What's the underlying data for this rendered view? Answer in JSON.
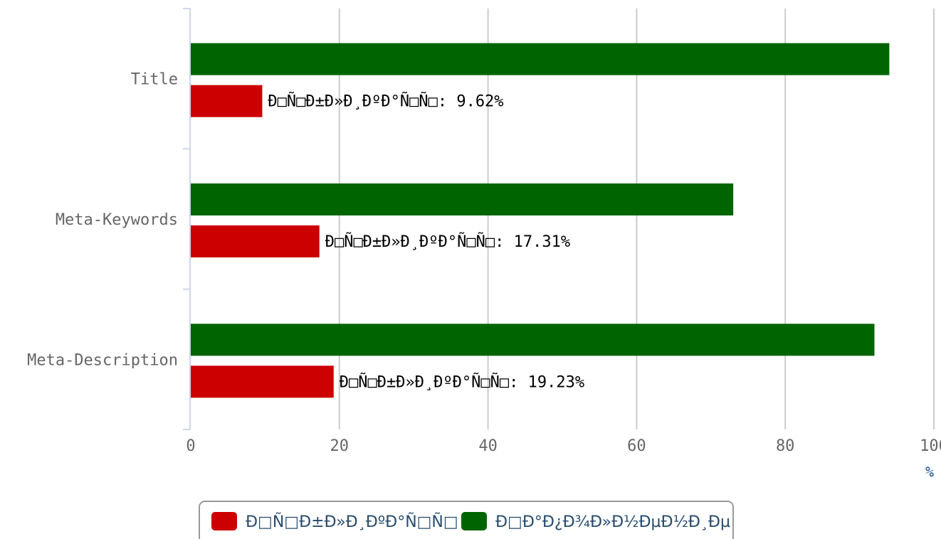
{
  "chart_data": {
    "type": "bar",
    "orientation": "horizontal",
    "categories": [
      "Title",
      "Meta-Keywords",
      "Meta-Description"
    ],
    "series": [
      {
        "name": "Ð□Ñ□Ð±Ð»Ð¸ÐºÐ°Ñ□Ñ□",
        "color": "#cc0000",
        "values": [
          9.62,
          17.31,
          19.23
        ],
        "value_labels": [
          "Ð□Ñ□Ð±Ð»Ð¸ÐºÐ°Ñ□Ñ□: 9.62%",
          "Ð□Ñ□Ð±Ð»Ð¸ÐºÐ°Ñ□Ñ□: 17.31%",
          "Ð□Ñ□Ð±Ð»Ð¸ÐºÐ°Ñ□Ñ□: 19.23%"
        ]
      },
      {
        "name": "Ð□Ð°Ð¿Ð¾Ð»Ð½ÐµÐ½Ð¸Ðµ",
        "color": "#006400",
        "values": [
          94,
          73,
          92
        ]
      }
    ],
    "xlim": [
      0,
      100
    ],
    "xticks": [
      0,
      20,
      40,
      60,
      80,
      100
    ],
    "x_label": "%",
    "grid": true,
    "legend": "bottom"
  }
}
